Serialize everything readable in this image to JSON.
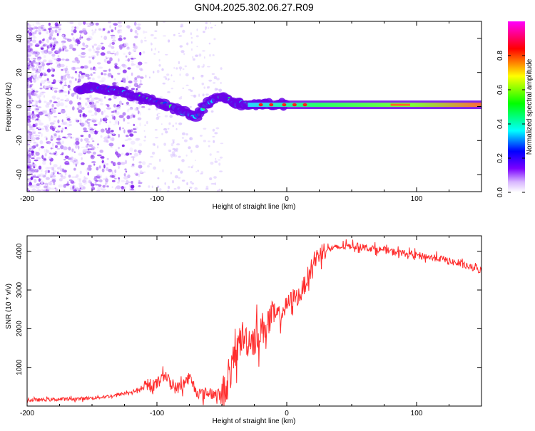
{
  "title": "GN04.2025.302.06.27.R09",
  "chart_data": [
    {
      "type": "heatmap",
      "title": "GN04.2025.302.06.27.R09",
      "xlabel": "Height of straight line (km)",
      "ylabel": "Frequency (Hz)",
      "xlim": [
        -200,
        150
      ],
      "ylim": [
        -50,
        50
      ],
      "x_ticks": [
        -200,
        -100,
        0,
        100
      ],
      "y_ticks": [
        40,
        20,
        0,
        -20,
        -40
      ],
      "colorbar": {
        "label": "Normalized spectral amplitude",
        "range": [
          0,
          1
        ],
        "ticks": [
          0.0,
          0.2,
          0.4,
          0.6,
          0.8
        ],
        "colors": [
          "#ffffff",
          "#d9b8ff",
          "#7a00ff",
          "#0000ff",
          "#00ffff",
          "#00ff00",
          "#ffff00",
          "#ff0000",
          "#ff00ff"
        ]
      },
      "ridge_track": {
        "x_km": [
          -160,
          -150,
          -140,
          -130,
          -120,
          -110,
          -100,
          -90,
          -80,
          -70,
          -60,
          -50,
          -40,
          -30,
          -20,
          -10,
          0,
          20,
          40,
          60,
          80,
          100,
          150
        ],
        "frequency_hz": [
          10,
          11,
          10,
          9,
          7,
          5,
          3,
          0,
          -3,
          -6,
          3,
          6,
          2,
          1,
          1,
          1,
          1,
          1,
          1,
          1,
          1,
          1,
          1
        ]
      }
    },
    {
      "type": "line",
      "xlabel": "Height of straight line (km)",
      "ylabel": "SNR (10 * v/v)",
      "xlim": [
        -200,
        150
      ],
      "ylim": [
        0,
        4400
      ],
      "x_ticks": [
        -200,
        -100,
        0,
        100
      ],
      "y_ticks": [
        1000,
        2000,
        3000,
        4000
      ],
      "series": [
        {
          "name": "SNR",
          "color": "#ff2b2b",
          "x": [
            -200,
            -190,
            -180,
            -170,
            -160,
            -150,
            -140,
            -130,
            -120,
            -110,
            -100,
            -95,
            -90,
            -85,
            -80,
            -75,
            -70,
            -65,
            -60,
            -55,
            -50,
            -45,
            -40,
            -35,
            -30,
            -25,
            -20,
            -15,
            -10,
            -5,
            0,
            5,
            10,
            15,
            20,
            25,
            30,
            40,
            50,
            60,
            70,
            80,
            90,
            100,
            110,
            120,
            130,
            140,
            150
          ],
          "values": [
            150,
            160,
            170,
            180,
            190,
            210,
            240,
            290,
            360,
            460,
            560,
            900,
            600,
            450,
            550,
            750,
            400,
            300,
            350,
            300,
            280,
            650,
            1250,
            1800,
            1700,
            1750,
            1950,
            2150,
            2300,
            2350,
            2600,
            2800,
            2850,
            3250,
            3650,
            3950,
            4050,
            4100,
            4150,
            4100,
            4050,
            4000,
            3950,
            3900,
            3850,
            3800,
            3700,
            3600,
            3500
          ]
        }
      ]
    }
  ]
}
